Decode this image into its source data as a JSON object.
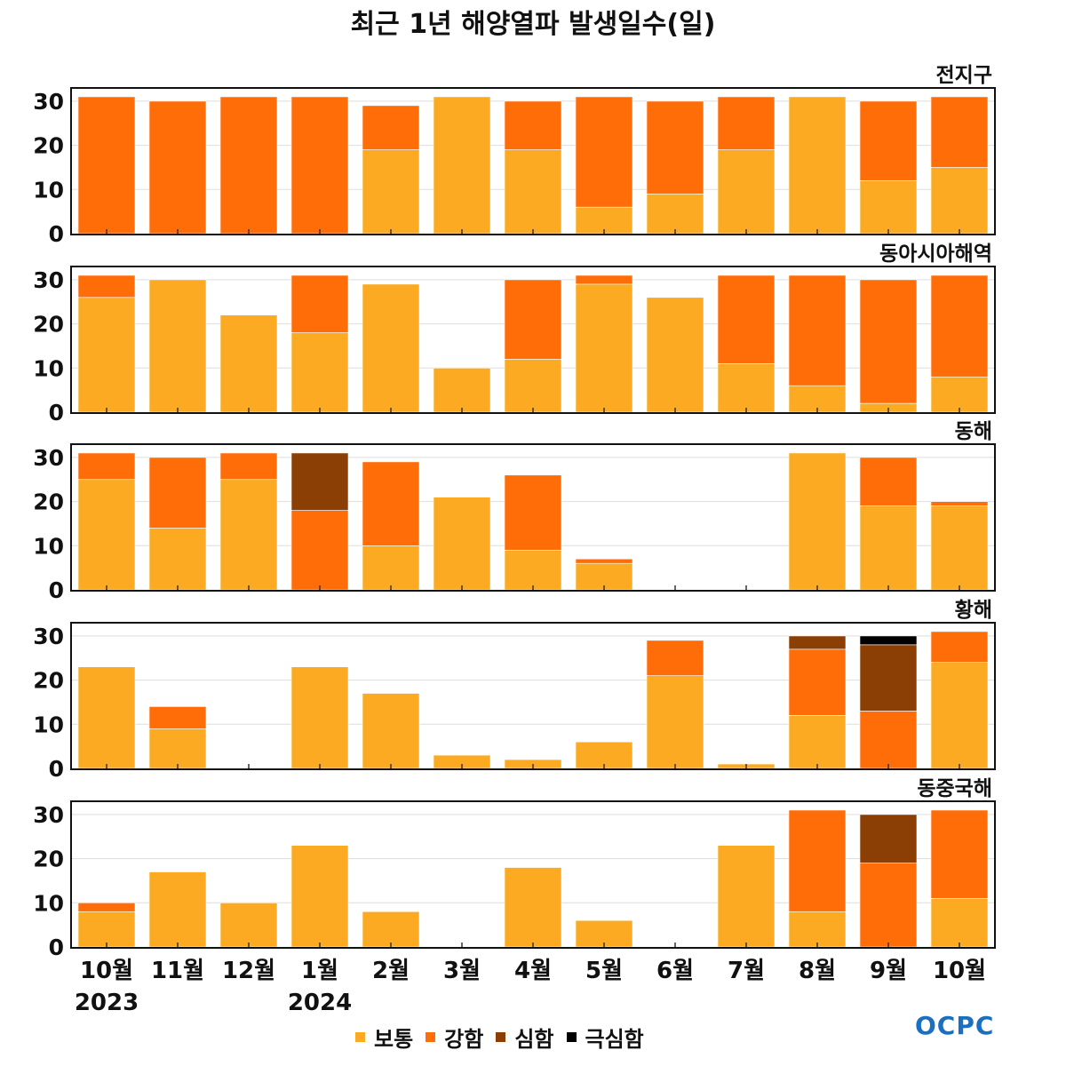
{
  "title": "최근 1년 해양열파 발생일수(일)",
  "logo": "OCPC",
  "chart_data": {
    "type": "bar",
    "stacked": true,
    "title": "최근 1년 해양열파 발생일수(일)",
    "categories": [
      "10월",
      "11월",
      "12월",
      "1월",
      "2월",
      "3월",
      "4월",
      "5월",
      "6월",
      "7월",
      "8월",
      "9월",
      "10월"
    ],
    "year_labels": [
      {
        "index": 0,
        "label": "2023"
      },
      {
        "index": 3,
        "label": "2024"
      }
    ],
    "ylim": [
      0,
      33
    ],
    "yticks": [
      0,
      10,
      20,
      30
    ],
    "grid": true,
    "legend_position": "bottom",
    "series_names": [
      "보통",
      "강함",
      "심함",
      "극심함"
    ],
    "colors": {
      "보통": "#FBAA22",
      "강함": "#FF6D08",
      "심함": "#8B3F05",
      "극심함": "#000000"
    },
    "panels": [
      {
        "name": "전지구",
        "series": {
          "보통": [
            0,
            0,
            0,
            0,
            19,
            31,
            19,
            6,
            9,
            19,
            31,
            12,
            15
          ],
          "강함": [
            31,
            30,
            31,
            31,
            10,
            0,
            11,
            25,
            21,
            12,
            0,
            18,
            16
          ],
          "심함": [
            0,
            0,
            0,
            0,
            0,
            0,
            0,
            0,
            0,
            0,
            0,
            0,
            0
          ],
          "극심함": [
            0,
            0,
            0,
            0,
            0,
            0,
            0,
            0,
            0,
            0,
            0,
            0,
            0
          ]
        }
      },
      {
        "name": "동아시아해역",
        "series": {
          "보통": [
            26,
            30,
            22,
            18,
            29,
            10,
            12,
            29,
            26,
            11,
            6,
            2,
            8
          ],
          "강함": [
            5,
            0,
            0,
            13,
            0,
            0,
            18,
            2,
            0,
            20,
            25,
            28,
            23
          ],
          "심함": [
            0,
            0,
            0,
            0,
            0,
            0,
            0,
            0,
            0,
            0,
            0,
            0,
            0
          ],
          "극심함": [
            0,
            0,
            0,
            0,
            0,
            0,
            0,
            0,
            0,
            0,
            0,
            0,
            0
          ]
        }
      },
      {
        "name": "동해",
        "series": {
          "보통": [
            25,
            14,
            25,
            0,
            10,
            21,
            9,
            6,
            0,
            0,
            31,
            19,
            19
          ],
          "강함": [
            6,
            16,
            6,
            18,
            19,
            0,
            17,
            1,
            0,
            0,
            0,
            11,
            1
          ],
          "심함": [
            0,
            0,
            0,
            13,
            0,
            0,
            0,
            0,
            0,
            0,
            0,
            0,
            0
          ],
          "극심함": [
            0,
            0,
            0,
            0,
            0,
            0,
            0,
            0,
            0,
            0,
            0,
            0,
            0
          ]
        }
      },
      {
        "name": "황해",
        "series": {
          "보통": [
            23,
            9,
            0,
            23,
            17,
            3,
            2,
            6,
            21,
            1,
            12,
            0,
            24
          ],
          "강함": [
            0,
            5,
            0,
            0,
            0,
            0,
            0,
            0,
            8,
            0,
            15,
            13,
            7
          ],
          "심함": [
            0,
            0,
            0,
            0,
            0,
            0,
            0,
            0,
            0,
            0,
            3,
            15,
            0
          ],
          "극심함": [
            0,
            0,
            0,
            0,
            0,
            0,
            0,
            0,
            0,
            0,
            0,
            2,
            0
          ]
        }
      },
      {
        "name": "동중국해",
        "series": {
          "보통": [
            8,
            17,
            10,
            23,
            8,
            0,
            18,
            6,
            0,
            23,
            8,
            0,
            11
          ],
          "강함": [
            2,
            0,
            0,
            0,
            0,
            0,
            0,
            0,
            0,
            0,
            23,
            19,
            20
          ],
          "심함": [
            0,
            0,
            0,
            0,
            0,
            0,
            0,
            0,
            0,
            0,
            0,
            11,
            0
          ],
          "극심함": [
            0,
            0,
            0,
            0,
            0,
            0,
            0,
            0,
            0,
            0,
            0,
            0,
            0
          ]
        }
      }
    ]
  }
}
